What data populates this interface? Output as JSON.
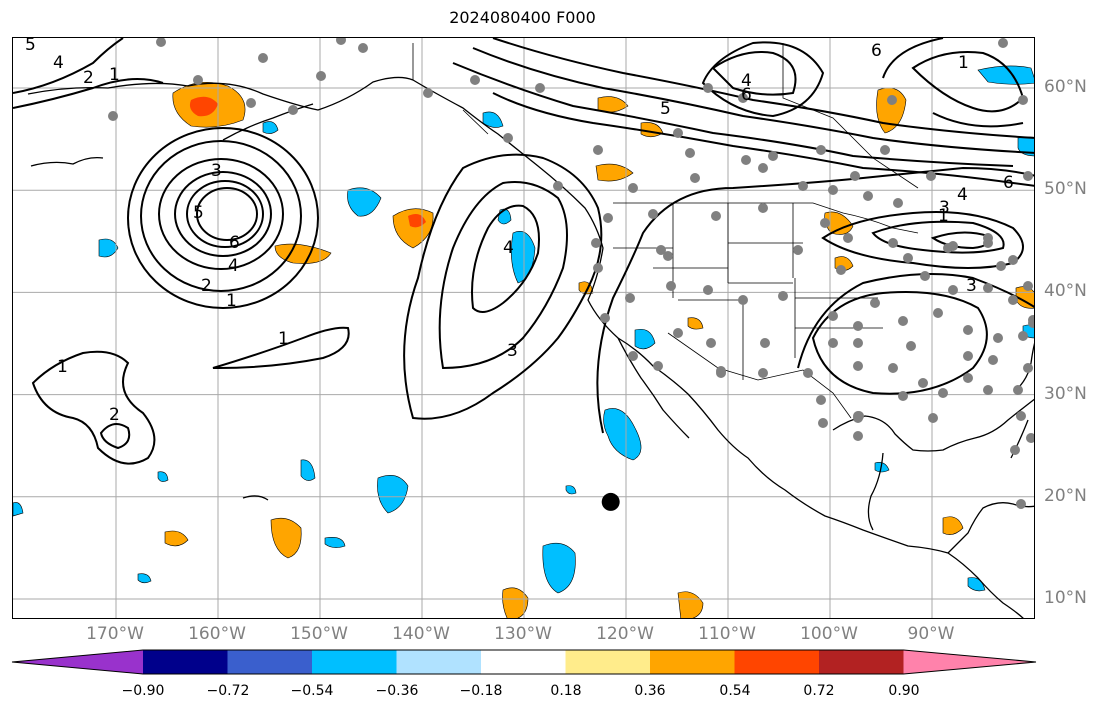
{
  "title": "2024080400 F000",
  "lon_labels": [
    "170°W",
    "160°W",
    "150°W",
    "140°W",
    "130°W",
    "120°W",
    "110°W",
    "100°W",
    "90°W"
  ],
  "lat_labels": [
    "60°N",
    "50°N",
    "40°N",
    "30°N",
    "20°N",
    "10°N"
  ],
  "colorbar": {
    "tick_labels": [
      "−0.90",
      "−0.72",
      "−0.54",
      "−0.36",
      "−0.18",
      "0.18",
      "0.36",
      "0.54",
      "0.72",
      "0.90"
    ],
    "colors": [
      "#9932cc",
      "#00008b",
      "#3a5fcd",
      "#00bfff",
      "#b0e2ff",
      "#ffffff",
      "#ffec8b",
      "#ffa500",
      "#ff4500",
      "#b22222",
      "#ff82ab"
    ]
  },
  "contour_labels": [
    {
      "text": "5"
    },
    {
      "text": "4"
    },
    {
      "text": "2"
    },
    {
      "text": "1"
    },
    {
      "text": "3"
    },
    {
      "text": "5"
    },
    {
      "text": "6"
    },
    {
      "text": "4"
    },
    {
      "text": "2"
    },
    {
      "text": "1"
    },
    {
      "text": "1"
    },
    {
      "text": "1"
    },
    {
      "text": "2"
    },
    {
      "text": "4"
    },
    {
      "text": "3"
    },
    {
      "text": "5"
    },
    {
      "text": "4"
    },
    {
      "text": "6"
    },
    {
      "text": "6"
    },
    {
      "text": "1"
    },
    {
      "text": "4"
    },
    {
      "text": "3"
    },
    {
      "text": "6"
    },
    {
      "text": "1"
    },
    {
      "text": "3"
    }
  ],
  "marker": {
    "lon": -121.5,
    "lat": 19.5
  }
}
